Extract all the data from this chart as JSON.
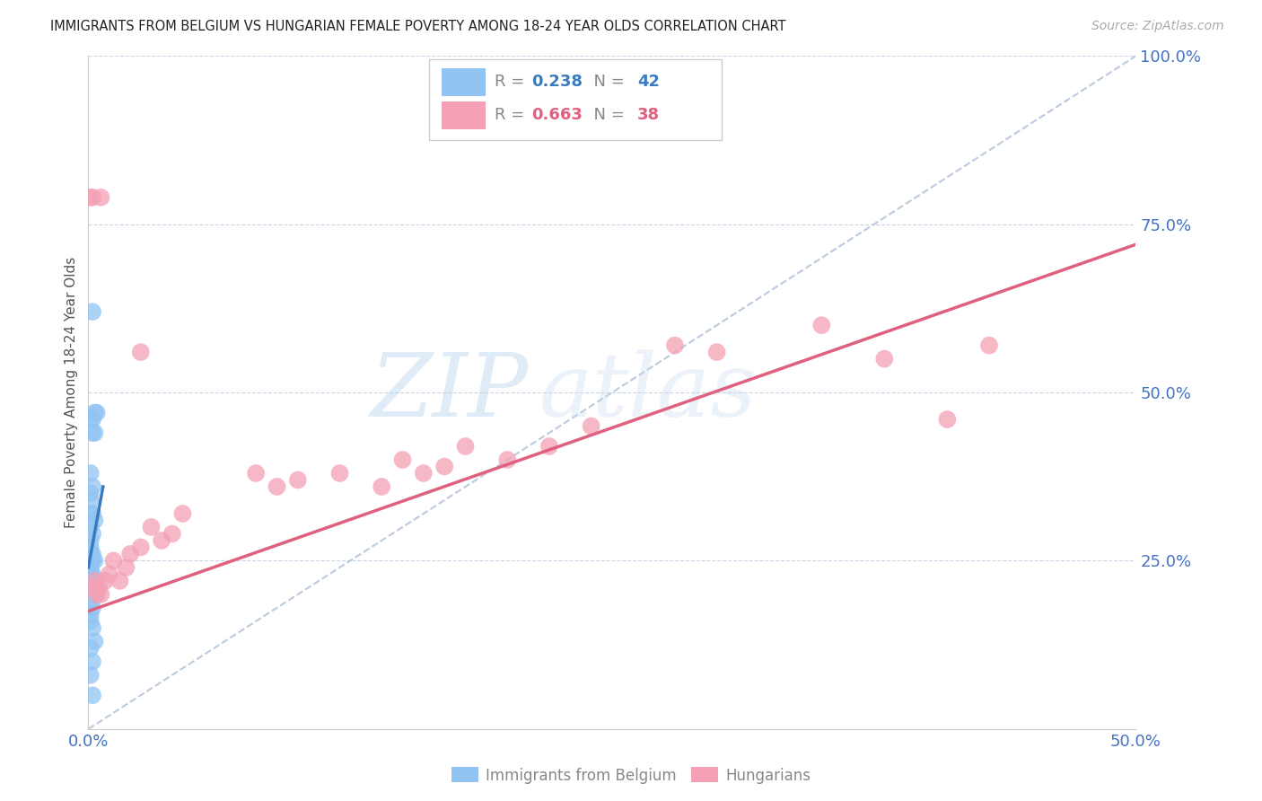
{
  "title": "IMMIGRANTS FROM BELGIUM VS HUNGARIAN FEMALE POVERTY AMONG 18-24 YEAR OLDS CORRELATION CHART",
  "source": "Source: ZipAtlas.com",
  "ylabel": "Female Poverty Among 18-24 Year Olds",
  "xlim": [
    0.0,
    0.5
  ],
  "ylim": [
    0.0,
    1.0
  ],
  "xtick_positions": [
    0.0,
    0.5
  ],
  "xtick_labels": [
    "0.0%",
    "50.0%"
  ],
  "ytick_positions": [
    0.25,
    0.5,
    0.75,
    1.0
  ],
  "ytick_labels": [
    "25.0%",
    "50.0%",
    "75.0%",
    "100.0%"
  ],
  "legend_labels": [
    "Immigrants from Belgium",
    "Hungarians"
  ],
  "R_belgium": 0.238,
  "N_belgium": 42,
  "R_hungarian": 0.663,
  "N_hungarian": 38,
  "belgium_color": "#91c4f2",
  "hungarian_color": "#f4a0b5",
  "belgium_line_color": "#3a7bbf",
  "hungarian_line_color": "#e06080",
  "watermark_zip": "ZIP",
  "watermark_atlas": "atlas",
  "bel_x": [
    0.002,
    0.004,
    0.003,
    0.002,
    0.001,
    0.003,
    0.002,
    0.001,
    0.002,
    0.001,
    0.001,
    0.002,
    0.001,
    0.003,
    0.001,
    0.002,
    0.001,
    0.001,
    0.002,
    0.001,
    0.002,
    0.001,
    0.003,
    0.001,
    0.002,
    0.001,
    0.001,
    0.002,
    0.003,
    0.001,
    0.004,
    0.002,
    0.001,
    0.002,
    0.001,
    0.001,
    0.002,
    0.003,
    0.001,
    0.002,
    0.001,
    0.002
  ],
  "bel_y": [
    0.62,
    0.47,
    0.47,
    0.46,
    0.46,
    0.44,
    0.44,
    0.38,
    0.36,
    0.35,
    0.34,
    0.32,
    0.32,
    0.31,
    0.3,
    0.29,
    0.28,
    0.27,
    0.26,
    0.26,
    0.25,
    0.25,
    0.25,
    0.24,
    0.23,
    0.23,
    0.22,
    0.22,
    0.21,
    0.21,
    0.2,
    0.2,
    0.19,
    0.18,
    0.17,
    0.16,
    0.15,
    0.13,
    0.12,
    0.1,
    0.08,
    0.05
  ],
  "hun_x": [
    0.001,
    0.002,
    0.003,
    0.003,
    0.004,
    0.005,
    0.006,
    0.008,
    0.01,
    0.012,
    0.015,
    0.018,
    0.02,
    0.025,
    0.03,
    0.035,
    0.04,
    0.045,
    0.08,
    0.09,
    0.1,
    0.12,
    0.14,
    0.15,
    0.16,
    0.17,
    0.18,
    0.2,
    0.22,
    0.24,
    0.28,
    0.3,
    0.35,
    0.38,
    0.41,
    0.43,
    0.006,
    0.025
  ],
  "hun_y": [
    0.79,
    0.79,
    0.21,
    0.22,
    0.2,
    0.21,
    0.2,
    0.22,
    0.23,
    0.25,
    0.22,
    0.24,
    0.26,
    0.27,
    0.3,
    0.28,
    0.29,
    0.32,
    0.38,
    0.36,
    0.37,
    0.38,
    0.36,
    0.4,
    0.38,
    0.39,
    0.42,
    0.4,
    0.42,
    0.45,
    0.57,
    0.56,
    0.6,
    0.55,
    0.46,
    0.57,
    0.79,
    0.56
  ],
  "hun_line_x0": 0.0,
  "hun_line_x1": 0.5,
  "hun_line_y0": 0.175,
  "hun_line_y1": 0.72,
  "bel_line_x0": 0.0,
  "bel_line_x1": 0.007,
  "bel_line_y0": 0.24,
  "bel_line_y1": 0.36,
  "ref_line_x0": 0.0,
  "ref_line_x1": 0.5,
  "ref_line_y0": 0.0,
  "ref_line_y1": 1.0
}
